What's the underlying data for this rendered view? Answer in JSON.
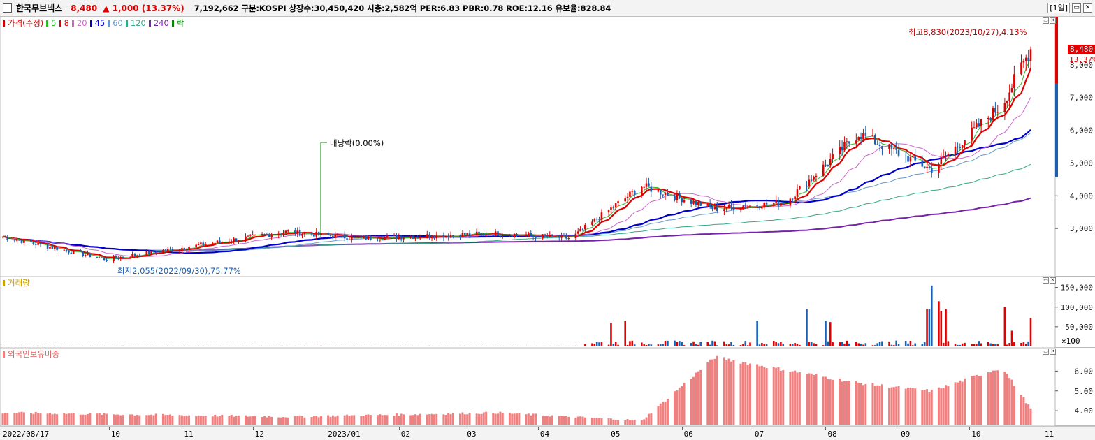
{
  "header": {
    "stock_name": "한국무브넥스",
    "price": "8,480",
    "change": "▲ 1,000 (13.37%)",
    "info": "7,192,662  구분:KOSPI 상장수:30,450,420 시총:2,582억 PER:6.83 PBR:0.78 ROE:12.16 유보율:828.84",
    "period": "[1일]",
    "restore_btn": "▭",
    "close_btn": "✕"
  },
  "price_panel": {
    "legend": [
      {
        "label": "가격(수정)",
        "color": "#cc0000"
      },
      {
        "label": "5",
        "color": "#2db82d"
      },
      {
        "label": "8",
        "color": "#e00000"
      },
      {
        "label": "20",
        "color": "#cc66cc"
      },
      {
        "label": "45",
        "color": "#0000cc"
      },
      {
        "label": "60",
        "color": "#6699cc"
      },
      {
        "label": "120",
        "color": "#33aa88"
      },
      {
        "label": "240",
        "color": "#7722aa"
      },
      {
        "label": "락",
        "color": "#008800"
      }
    ],
    "high_note": "최고8,830(2023/10/27),4.13%",
    "low_note": "최저2,055(2022/09/30),75.77%",
    "dividend_note": "배당락(0.00%)",
    "last_price": "8,480",
    "last_change_pct": "13.37%",
    "y_ticks": [
      "3,000",
      "4,000",
      "5,000",
      "6,000",
      "7,000",
      "8,000"
    ]
  },
  "volume_panel": {
    "legend": "거래량",
    "legend_color": "#c8a000",
    "y_ticks": [
      "150,000",
      "100,000",
      "50,000"
    ],
    "unit": "×100"
  },
  "foreign_panel": {
    "legend": "외국인보유비중",
    "legend_color": "#f08080",
    "y_ticks": [
      "6.00",
      "5.00",
      "4.00"
    ]
  },
  "x_axis": {
    "labels": [
      "2022/08/17",
      "10",
      "11",
      "12",
      "2023/01",
      "02",
      "03",
      "04",
      "05",
      "06",
      "07",
      "08",
      "09",
      "10",
      "11"
    ]
  },
  "chart_data": {
    "type": "candlestick",
    "price_series_approx": {
      "x": [
        "2022/08",
        "2022/09/30",
        "2022/12",
        "2023/01",
        "2023/03",
        "2023/04",
        "2023/05",
        "2023/06",
        "2023/07",
        "2023/08",
        "2023/09",
        "2023/10",
        "2023/10/27"
      ],
      "close": [
        2750,
        2055,
        2900,
        2700,
        2850,
        2700,
        4300,
        3600,
        3800,
        5900,
        4800,
        6800,
        8480
      ]
    },
    "foreign_ratio_approx": {
      "x": [
        "2022/08",
        "2022/12",
        "2023/03",
        "2023/05",
        "2023/06",
        "2023/08",
        "2023/09",
        "2023/10",
        "2023/10/27"
      ],
      "values": [
        3.9,
        3.7,
        3.9,
        3.5,
        6.7,
        5.4,
        5.0,
        6.2,
        4.1
      ]
    },
    "ylim_price": [
      2000,
      8830
    ],
    "ylim_volume": [
      0,
      160000
    ],
    "ylim_foreign": [
      3.3,
      7.0
    ]
  }
}
